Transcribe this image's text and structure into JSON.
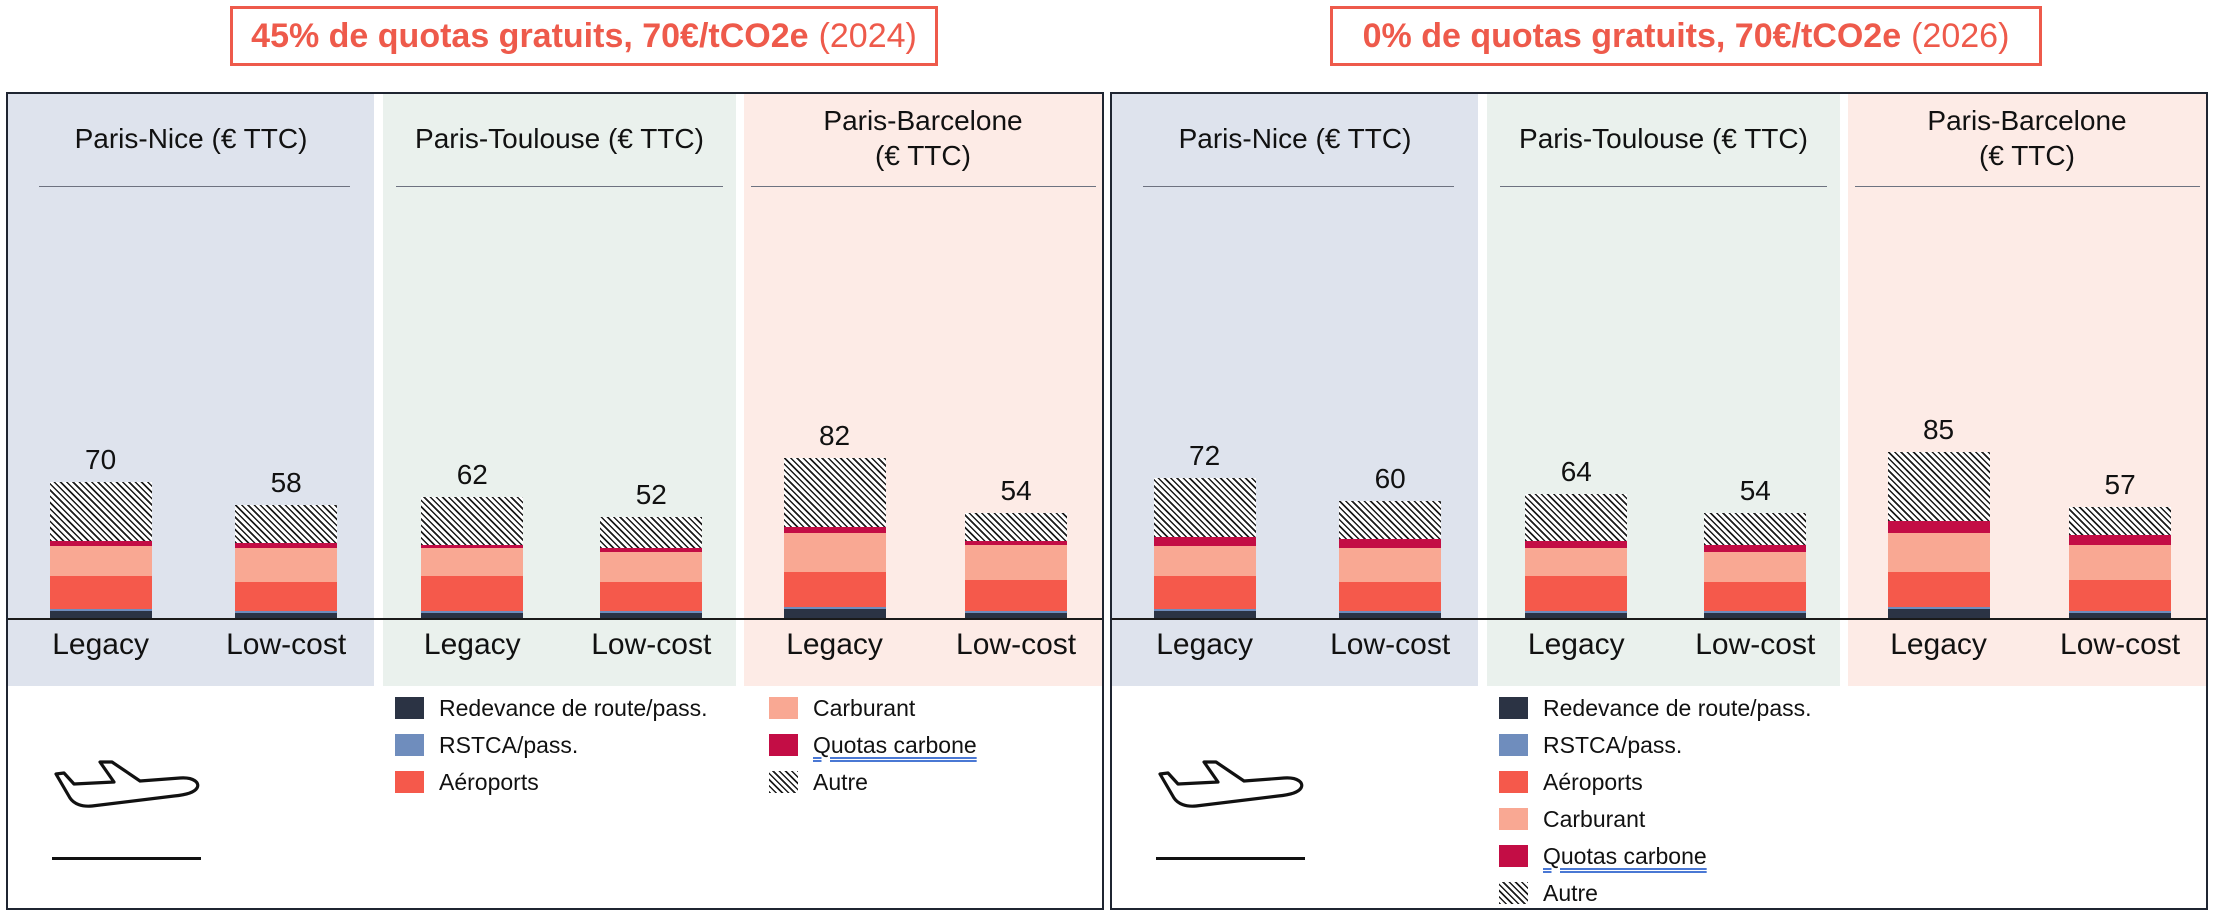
{
  "colors": {
    "title": "#ee5a4b",
    "panel_border": "#1f2531",
    "group_backgrounds": [
      "#dee3ed",
      "#eaf1ed",
      "#fdebe6"
    ],
    "link_underline": "#4a78d4"
  },
  "chart_data": [
    {
      "type": "bar",
      "stacked": true,
      "title": "45% de quotas gratuits, 70€/tCO2e",
      "title_year": "(2024)",
      "legend_position": "bottom",
      "grid": false,
      "icon": "airplane-icon",
      "groups": [
        {
          "title": "Paris-Nice (€ TTC)",
          "categories": [
            "Legacy",
            "Low-cost"
          ],
          "totals": [
            70,
            58
          ]
        },
        {
          "title": "Paris-Toulouse (€ TTC)",
          "categories": [
            "Legacy",
            "Low-cost"
          ],
          "totals": [
            62,
            52
          ]
        },
        {
          "title": "Paris-Barcelone\n(€ TTC)",
          "categories": [
            "Legacy",
            "Low-cost"
          ],
          "totals": [
            82,
            54
          ]
        }
      ],
      "series": [
        {
          "name": "Redevance de route/pass.",
          "color": "#2b3344",
          "values": [
            [
              4,
              3
            ],
            [
              3,
              3
            ],
            [
              5,
              3
            ]
          ]
        },
        {
          "name": "RSTCA/pass.",
          "color": "#6f8dbd",
          "values": [
            [
              1,
              1
            ],
            [
              1,
              1
            ],
            [
              1,
              1
            ]
          ]
        },
        {
          "name": "Aéroports",
          "color": "#f5594b",
          "values": [
            [
              17,
              15
            ],
            [
              18,
              15
            ],
            [
              18,
              16
            ]
          ]
        },
        {
          "name": "Carburant",
          "color": "#f9a893",
          "values": [
            [
              15,
              17
            ],
            [
              14,
              15
            ],
            [
              20,
              18
            ]
          ]
        },
        {
          "name": "Quotas carbone",
          "color": "#c30d45",
          "underlined": true,
          "values": [
            [
              3,
              3
            ],
            [
              2,
              2
            ],
            [
              3,
              2
            ]
          ]
        },
        {
          "name": "Autre",
          "pattern": "hatch",
          "values": [
            [
              30,
              19
            ],
            [
              24,
              16
            ],
            [
              35,
              14
            ]
          ]
        }
      ]
    },
    {
      "type": "bar",
      "stacked": true,
      "title": "0% de quotas gratuits, 70€/tCO2e",
      "title_year": "(2026)",
      "legend_position": "bottom",
      "grid": false,
      "icon": "airplane-icon",
      "groups": [
        {
          "title": "Paris-Nice (€ TTC)",
          "categories": [
            "Legacy",
            "Low-cost"
          ],
          "totals": [
            72,
            60
          ]
        },
        {
          "title": "Paris-Toulouse (€ TTC)",
          "categories": [
            "Legacy",
            "Low-cost"
          ],
          "totals": [
            64,
            54
          ]
        },
        {
          "title": "Paris-Barcelone\n(€ TTC)",
          "categories": [
            "Legacy",
            "Low-cost"
          ],
          "totals": [
            85,
            57
          ]
        }
      ],
      "series": [
        {
          "name": "Redevance de route/pass.",
          "color": "#2b3344",
          "values": [
            [
              4,
              3
            ],
            [
              3,
              3
            ],
            [
              5,
              3
            ]
          ]
        },
        {
          "name": "RSTCA/pass.",
          "color": "#6f8dbd",
          "values": [
            [
              1,
              1
            ],
            [
              1,
              1
            ],
            [
              1,
              1
            ]
          ]
        },
        {
          "name": "Aéroports",
          "color": "#f5594b",
          "values": [
            [
              17,
              15
            ],
            [
              18,
              15
            ],
            [
              18,
              16
            ]
          ]
        },
        {
          "name": "Carburant",
          "color": "#f9a893",
          "values": [
            [
              15,
              17
            ],
            [
              14,
              15
            ],
            [
              20,
              18
            ]
          ]
        },
        {
          "name": "Quotas carbone",
          "color": "#c30d45",
          "underlined": true,
          "values": [
            [
              5,
              5
            ],
            [
              4,
              4
            ],
            [
              6,
              5
            ]
          ]
        },
        {
          "name": "Autre",
          "pattern": "hatch",
          "values": [
            [
              30,
              19
            ],
            [
              24,
              16
            ],
            [
              35,
              14
            ]
          ]
        }
      ]
    }
  ]
}
